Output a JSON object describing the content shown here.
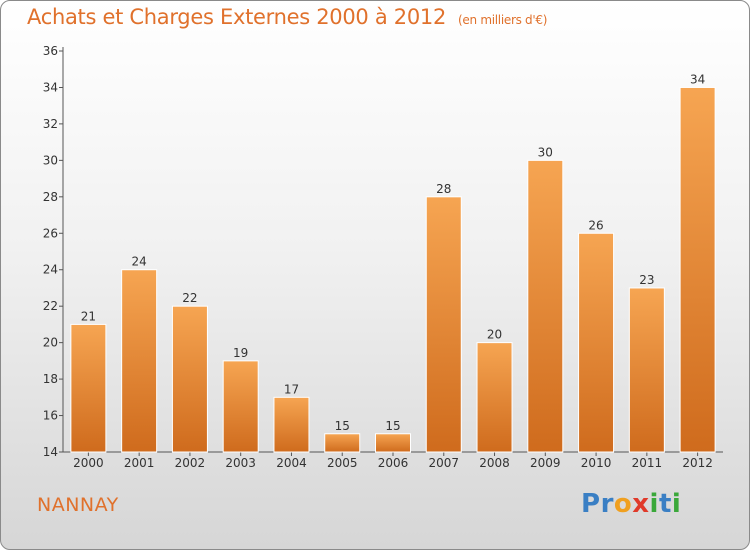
{
  "title": "Achats et Charges Externes 2000 à 2012",
  "unit_label": "(en milliers d'€)",
  "place": "NANNAY",
  "logo": {
    "letters": [
      "P",
      "r",
      "o",
      "x",
      "i",
      "t",
      "i"
    ],
    "colors": [
      "#3a7fc4",
      "#3a7fc4",
      "#f0a020",
      "#e03a2a",
      "#3aa83a",
      "#3a7fc4",
      "#3aa83a"
    ]
  },
  "colors": {
    "accent": "#e0712c",
    "bar_top": "#f6a552",
    "bar_bottom": "#cf6b1d"
  },
  "chart_data": {
    "type": "bar",
    "title": "Achats et Charges Externes 2000 à 2012",
    "categories": [
      "2000",
      "2001",
      "2002",
      "2003",
      "2004",
      "2005",
      "2006",
      "2007",
      "2008",
      "2009",
      "2010",
      "2011",
      "2012"
    ],
    "values": [
      21,
      24,
      22,
      19,
      17,
      15,
      15,
      28,
      20,
      30,
      26,
      23,
      34
    ],
    "ylim": [
      14,
      36
    ],
    "yticks": [
      14,
      16,
      18,
      20,
      22,
      24,
      26,
      28,
      30,
      32,
      34,
      36
    ],
    "grid": false,
    "xlabel": "",
    "ylabel": ""
  }
}
